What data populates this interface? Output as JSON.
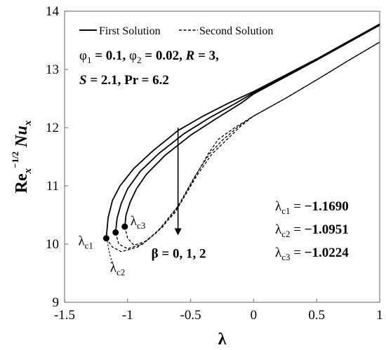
{
  "chart_data": {
    "type": "line",
    "xlabel": "λ",
    "ylabel": {
      "base": "Re",
      "sub": "x",
      "sup": "−1/2",
      "sym": "Nu",
      "symsub": "x"
    },
    "xlim": [
      -1.5,
      1
    ],
    "ylim": [
      9,
      14
    ],
    "xticks": [
      "-1.5",
      "-1",
      "-0.5",
      "0",
      "0.5",
      "1"
    ],
    "yticks": [
      "9",
      "10",
      "11",
      "12",
      "13",
      "14"
    ],
    "legend": {
      "placement": "top-left",
      "entries": [
        {
          "label": "First Solution",
          "style": "solid"
        },
        {
          "label": "Second Solution",
          "style": "dashed"
        }
      ]
    },
    "parameters": {
      "phi1_sym": "φ",
      "phi1_sub": "1",
      "phi1_val": " = 0.1, ",
      "phi2_sym": "φ",
      "phi2_sub": "2",
      "phi2_val": " = 0.02, ",
      "R_sym": "R",
      "R_val": " = 3,",
      "S_sym": "S",
      "S_val": " = 2.1, ",
      "Pr_sym": "Pr",
      "Pr_val": " = 6.2"
    },
    "beta_label": "β = 0, 1, 2",
    "critical_points": [
      {
        "sym": "λ",
        "sub": "c1",
        "label_sub": "c1",
        "x": -1.169,
        "y": 10.1,
        "value": "−1.1690"
      },
      {
        "sym": "λ",
        "sub": "c2",
        "label_sub": "c2",
        "x": -1.0951,
        "y": 10.2,
        "value": "−1.0951"
      },
      {
        "sym": "λ",
        "sub": "c3",
        "label_sub": "c3",
        "x": -1.0224,
        "y": 10.3,
        "value": "−1.0224"
      }
    ],
    "series": [
      {
        "style": "solid",
        "x": [
          -1.169,
          -1.155,
          -1.12,
          -1.06,
          -0.95,
          -0.8,
          -0.6,
          -0.4,
          -0.2,
          0,
          0.25,
          0.5,
          0.75,
          1
        ],
        "y": [
          10.1,
          10.45,
          10.75,
          11.0,
          11.3,
          11.6,
          11.95,
          12.2,
          12.42,
          12.62,
          12.9,
          13.18,
          13.48,
          13.78
        ]
      },
      {
        "style": "solid",
        "x": [
          -1.0951,
          -1.083,
          -1.05,
          -1.0,
          -0.9,
          -0.75,
          -0.55,
          -0.35,
          -0.15,
          0,
          0.25,
          0.5,
          0.75,
          1
        ],
        "y": [
          10.2,
          10.45,
          10.7,
          10.95,
          11.25,
          11.56,
          11.9,
          12.17,
          12.41,
          12.6,
          12.88,
          13.17,
          13.47,
          13.77
        ]
      },
      {
        "style": "solid",
        "x": [
          -1.0224,
          -1.012,
          -0.98,
          -0.93,
          -0.85,
          -0.7,
          -0.5,
          -0.3,
          -0.1,
          0,
          0.25,
          0.5,
          0.75,
          1
        ],
        "y": [
          10.3,
          10.5,
          10.72,
          10.95,
          11.2,
          11.53,
          11.87,
          12.15,
          12.42,
          12.58,
          12.87,
          13.16,
          13.46,
          13.76
        ]
      },
      {
        "style": "dashed",
        "x": [
          -1.169,
          -1.12,
          -1.05,
          -0.92,
          -0.78,
          -0.62,
          -0.48,
          -0.36,
          -0.28,
          -0.15,
          0,
          0.25,
          0.5,
          0.75,
          1
        ],
        "y": [
          10.1,
          9.95,
          9.87,
          9.95,
          10.18,
          10.55,
          11.1,
          11.55,
          11.8,
          12.0,
          12.2,
          12.5,
          12.82,
          13.15,
          13.47
        ]
      },
      {
        "style": "dashed",
        "x": [
          -1.0951,
          -1.07,
          -1.0,
          -0.88,
          -0.75,
          -0.6,
          -0.47,
          -0.35,
          -0.25,
          -0.12,
          0,
          0.25,
          0.5,
          0.75,
          1
        ],
        "y": [
          10.2,
          10.0,
          9.92,
          10.0,
          10.25,
          10.65,
          11.15,
          11.55,
          11.78,
          12.02,
          12.2,
          12.5,
          12.82,
          13.15,
          13.47
        ]
      },
      {
        "style": "dashed",
        "x": [
          -1.0224,
          -1.0,
          -0.95,
          -0.85,
          -0.72,
          -0.58,
          -0.45,
          -0.33,
          -0.22,
          -0.1,
          0,
          0.25,
          0.5,
          0.75,
          1
        ],
        "y": [
          10.3,
          10.1,
          9.98,
          10.05,
          10.3,
          10.7,
          11.18,
          11.55,
          11.78,
          12.03,
          12.2,
          12.5,
          12.82,
          13.15,
          13.47
        ]
      }
    ],
    "arrow": {
      "x": -0.6,
      "y_from": 12.0,
      "y_to": 10.15
    },
    "grid": false
  }
}
